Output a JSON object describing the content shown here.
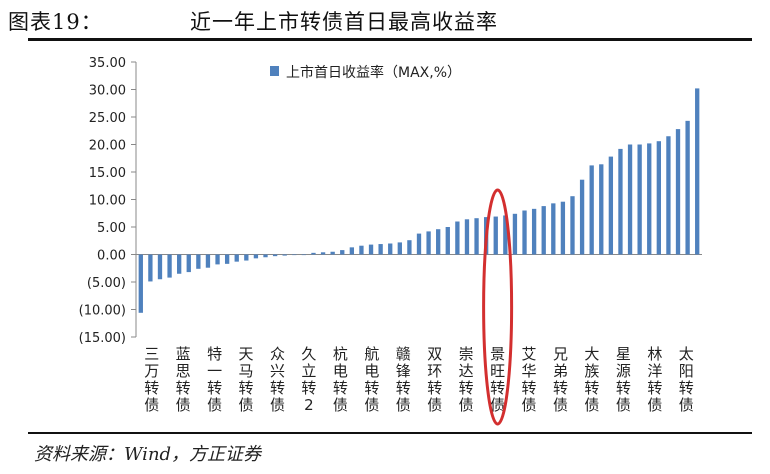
{
  "header": {
    "figure_label": "图表19：",
    "title": "近一年上市转债首日最高收益率"
  },
  "source": "资料来源：Wind，方正证券",
  "highlight_color": "#d32f2f",
  "bar_color": "#4f81bd",
  "chart_data": {
    "type": "bar",
    "title": "近一年上市转债首日最高收益率",
    "legend": {
      "label": "上市首日收益率（MAX,%）",
      "position": "top"
    },
    "ylim": [
      -15,
      35
    ],
    "yticks": [
      35,
      30,
      25,
      20,
      15,
      10,
      5,
      0,
      -5,
      -10,
      -15
    ],
    "ytick_labels": [
      "35.00",
      "30.00",
      "25.00",
      "20.00",
      "15.00",
      "10.00",
      "5.00",
      "0.00",
      "(5.00)",
      "(10.00)",
      "(15.00)"
    ],
    "labeled_categories": [
      "三万转债",
      "蓝思转债",
      "特一转债",
      "天马转债",
      "众兴转债",
      "久立转2",
      "杭电转债",
      "航电转债",
      "赣锋转债",
      "双环转债",
      "崇达转债",
      "景旺转债",
      "艾华转债",
      "兄弟转债",
      "大族转债",
      "星源转债",
      "林洋转债",
      "太阳转债"
    ],
    "highlighted_category": "景旺转债",
    "values": [
      -10.6,
      -4.9,
      -4.5,
      -4.2,
      -3.5,
      -3.2,
      -2.6,
      -2.4,
      -1.8,
      -1.7,
      -1.3,
      -1.1,
      -0.7,
      -0.5,
      -0.3,
      -0.2,
      0.0,
      0.0,
      0.3,
      0.4,
      0.5,
      0.8,
      1.3,
      1.6,
      1.8,
      1.9,
      2.0,
      2.2,
      2.6,
      3.8,
      4.2,
      4.6,
      5.0,
      6.0,
      6.4,
      6.6,
      6.8,
      6.9,
      7.1,
      7.4,
      8.0,
      8.3,
      8.8,
      9.3,
      9.6,
      10.6,
      13.6,
      16.2,
      16.4,
      17.8,
      19.2,
      20.0,
      20.0,
      20.2,
      20.6,
      21.5,
      22.8,
      24.3,
      30.2
    ]
  }
}
